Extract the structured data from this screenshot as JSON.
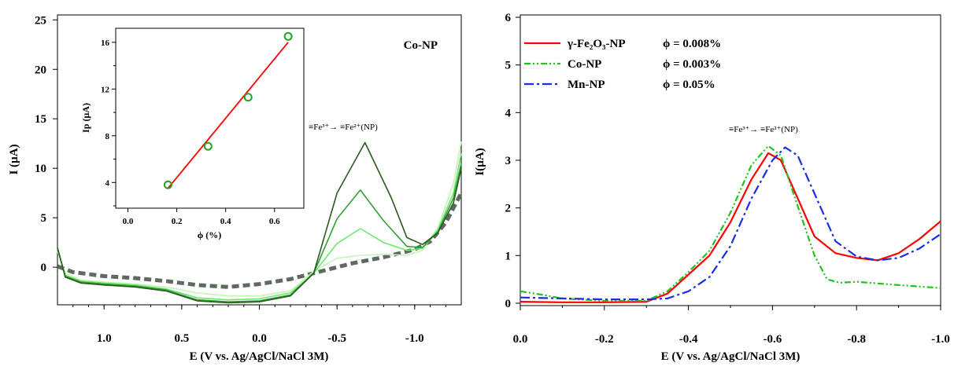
{
  "chart_data": [
    {
      "type": "line",
      "panel": "left",
      "xlabel": "E (V vs. Ag/AgCl/NaCl 3M)",
      "ylabel": "I (µA)",
      "xlim": [
        1.3,
        -1.3
      ],
      "ylim": [
        -3.8,
        25.5
      ],
      "x_ticks": [
        1.0,
        0.5,
        0.0,
        -0.5,
        -1.0
      ],
      "x_tick_labels": [
        "1.0",
        "0.5",
        "0.0",
        "-0.5",
        "-1.0"
      ],
      "y_ticks": [
        0,
        5,
        10,
        15,
        20,
        25
      ],
      "y_tick_labels": [
        "0",
        "5",
        "10",
        "15",
        "20",
        "25"
      ],
      "panel_label": "Co-NP",
      "annotation": "≡Fe³⁺→ ≡Fe²⁺(NP)",
      "series": [
        {
          "color": "#5f6a5f",
          "dash": "dashed-thick",
          "x": [
            1.3,
            1.2,
            1.0,
            0.8,
            0.6,
            0.4,
            0.2,
            0.0,
            -0.2,
            -0.4,
            -0.6,
            -0.8,
            -1.0,
            -1.1,
            -1.2,
            -1.3
          ],
          "y": [
            0.1,
            -0.5,
            -0.9,
            -1.1,
            -1.4,
            -1.8,
            -2.0,
            -1.7,
            -1.2,
            -0.4,
            0.4,
            1.0,
            1.8,
            2.6,
            4.5,
            7.5
          ]
        },
        {
          "color": "#c6f3b8",
          "x": [
            1.3,
            1.25,
            1.15,
            1.0,
            0.8,
            0.6,
            0.4,
            0.2,
            0.0,
            -0.2,
            -0.35,
            -0.5,
            -0.65,
            -0.8,
            -0.95,
            -1.05,
            -1.15,
            -1.25,
            -1.3
          ],
          "y": [
            1.6,
            -0.6,
            -1.3,
            -1.5,
            -1.7,
            -2.0,
            -2.6,
            -2.9,
            -2.9,
            -2.4,
            -0.4,
            0.9,
            1.2,
            1.3,
            1.2,
            1.7,
            4.0,
            8.5,
            12.7
          ]
        },
        {
          "color": "#6ee86e",
          "x": [
            1.3,
            1.25,
            1.15,
            1.0,
            0.8,
            0.6,
            0.4,
            0.2,
            0.0,
            -0.2,
            -0.35,
            -0.5,
            -0.65,
            -0.8,
            -0.95,
            -1.05,
            -1.15,
            -1.25,
            -1.3
          ],
          "y": [
            1.8,
            -0.8,
            -1.4,
            -1.6,
            -1.8,
            -2.2,
            -3.1,
            -3.3,
            -3.2,
            -2.6,
            -0.6,
            2.4,
            3.9,
            2.5,
            1.7,
            1.9,
            3.8,
            7.5,
            11.5
          ]
        },
        {
          "color": "#33a033",
          "x": [
            1.3,
            1.25,
            1.15,
            1.0,
            0.8,
            0.6,
            0.4,
            0.2,
            0.0,
            -0.2,
            -0.35,
            -0.5,
            -0.65,
            -0.8,
            -0.95,
            -1.05,
            -1.15,
            -1.25,
            -1.3
          ],
          "y": [
            1.9,
            -0.9,
            -1.5,
            -1.7,
            -1.9,
            -2.3,
            -3.3,
            -3.5,
            -3.4,
            -2.8,
            -0.6,
            4.9,
            7.8,
            4.7,
            2.1,
            2.0,
            3.6,
            7.0,
            10.5
          ]
        },
        {
          "color": "#2a5a20",
          "x": [
            1.3,
            1.25,
            1.15,
            1.0,
            0.8,
            0.6,
            0.4,
            0.2,
            0.0,
            -0.2,
            -0.35,
            -0.5,
            -0.68,
            -0.85,
            -0.95,
            -1.05,
            -1.15,
            -1.25,
            -1.3
          ],
          "y": [
            2.0,
            -1.0,
            -1.6,
            -1.8,
            -2.0,
            -2.4,
            -3.4,
            -3.6,
            -3.5,
            -2.9,
            -0.6,
            7.5,
            12.6,
            7.0,
            3.0,
            2.3,
            3.5,
            6.5,
            10.0
          ]
        }
      ],
      "inset": {
        "type": "scatter",
        "xlabel": "ϕ (%)",
        "ylabel": "Ip (µA)",
        "xlim": [
          -0.05,
          0.72
        ],
        "ylim": [
          1.8,
          17.2
        ],
        "x_ticks": [
          0.0,
          0.2,
          0.4,
          0.6
        ],
        "x_tick_labels": [
          "0.0",
          "0.2",
          "0.4",
          "0.6"
        ],
        "y_ticks": [
          4,
          8,
          12,
          16
        ],
        "y_tick_labels": [
          "4",
          "8",
          "12",
          "16"
        ],
        "points": {
          "x": [
            0.164,
            0.328,
            0.492,
            0.656
          ],
          "y": [
            3.8,
            7.1,
            11.3,
            16.5
          ]
        },
        "fit": {
          "x": [
            0.164,
            0.656
          ],
          "y": [
            3.5,
            16.0
          ]
        },
        "marker_color": "#1fa51f",
        "fit_color": "#ff0000"
      }
    },
    {
      "type": "line",
      "panel": "right",
      "xlabel": "E (V vs. Ag/AgCl/NaCl 3M)",
      "ylabel": "I(µA)",
      "xlim": [
        0.0,
        -1.0
      ],
      "ylim": [
        -0.05,
        6.05
      ],
      "x_ticks": [
        0.0,
        -0.2,
        -0.4,
        -0.6,
        -0.8,
        -1.0
      ],
      "x_tick_labels": [
        "0.0",
        "-0.2",
        "-0.4",
        "-0.6",
        "-0.8",
        "-1.0"
      ],
      "y_ticks": [
        0,
        1,
        2,
        3,
        4,
        5,
        6
      ],
      "y_tick_labels": [
        "0",
        "1",
        "2",
        "3",
        "4",
        "5",
        "6"
      ],
      "annotation": "≡Fe³⁺→ ≡Fe²⁺(NP)",
      "legend": [
        {
          "label": "γ-Fe₂O₃-NP",
          "phi": "ϕ = 0.008%"
        },
        {
          "label": "Co-NP",
          "phi": "ϕ = 0.003%"
        },
        {
          "label": "Mn-NP",
          "phi": "ϕ = 0.05%"
        }
      ],
      "series": [
        {
          "name": "γ-Fe₂O₃-NP",
          "color": "#ff0000",
          "dash": "solid",
          "x": [
            0.0,
            -0.1,
            -0.2,
            -0.3,
            -0.35,
            -0.4,
            -0.45,
            -0.5,
            -0.55,
            -0.59,
            -0.62,
            -0.65,
            -0.7,
            -0.75,
            -0.8,
            -0.85,
            -0.9,
            -0.95,
            -1.0
          ],
          "y": [
            0.03,
            0.02,
            0.02,
            0.03,
            0.2,
            0.6,
            1.0,
            1.7,
            2.6,
            3.15,
            3.0,
            2.4,
            1.4,
            1.05,
            0.95,
            0.9,
            1.05,
            1.35,
            1.72
          ]
        },
        {
          "name": "Co-NP",
          "color": "#22c022",
          "dash": "dash-dot-dot",
          "x": [
            0.0,
            -0.05,
            -0.1,
            -0.2,
            -0.3,
            -0.35,
            -0.4,
            -0.45,
            -0.5,
            -0.55,
            -0.59,
            -0.62,
            -0.65,
            -0.7,
            -0.73,
            -0.76,
            -0.8,
            -0.9,
            -1.0
          ],
          "y": [
            0.25,
            0.18,
            0.1,
            0.05,
            0.05,
            0.25,
            0.65,
            1.1,
            1.9,
            2.9,
            3.3,
            3.1,
            2.3,
            1.0,
            0.5,
            0.43,
            0.45,
            0.38,
            0.32
          ]
        },
        {
          "name": "Mn-NP",
          "color": "#1a2ee6",
          "dash": "dash-dot",
          "x": [
            0.0,
            -0.1,
            -0.2,
            -0.3,
            -0.35,
            -0.4,
            -0.45,
            -0.5,
            -0.55,
            -0.6,
            -0.63,
            -0.66,
            -0.7,
            -0.75,
            -0.8,
            -0.85,
            -0.9,
            -0.95,
            -1.0
          ],
          "y": [
            0.12,
            0.1,
            0.08,
            0.08,
            0.1,
            0.25,
            0.55,
            1.2,
            2.2,
            3.0,
            3.27,
            3.1,
            2.3,
            1.3,
            0.98,
            0.9,
            0.95,
            1.15,
            1.45
          ]
        }
      ]
    }
  ]
}
